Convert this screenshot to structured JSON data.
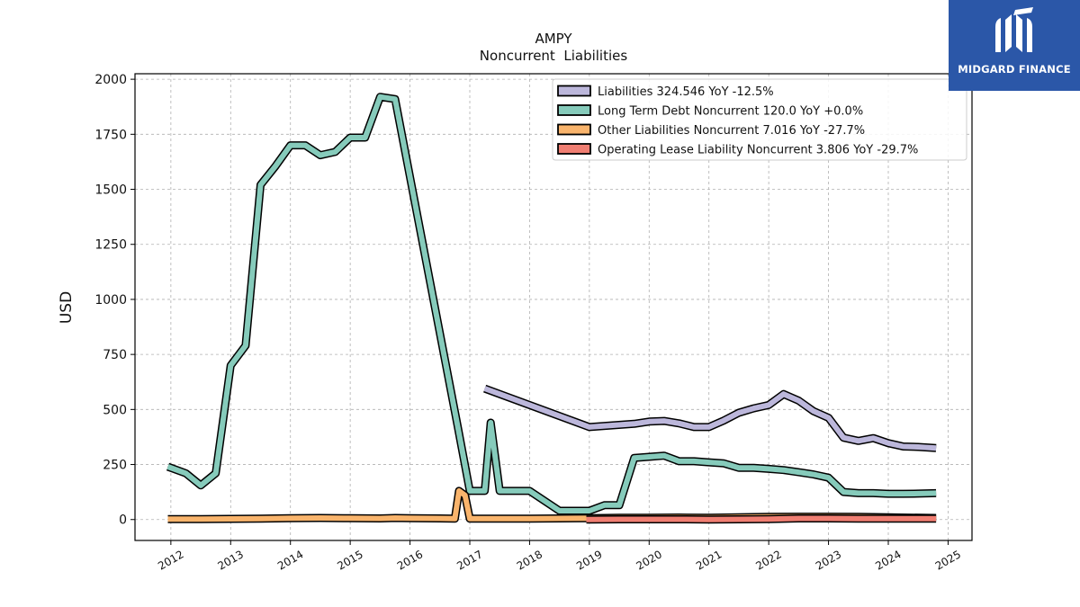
{
  "brand": {
    "name": "MIDGARD FINANCE",
    "logo_icon": "midgard-logo-icon",
    "background": "#2b57a8"
  },
  "chart_data": {
    "type": "line",
    "title": "AMPY",
    "subtitle": "Noncurrent  Liabilities",
    "ylabel": "USD",
    "xlabel": "",
    "xlim": [
      2011.4,
      2025.4
    ],
    "ylim": [
      -95,
      2025
    ],
    "x_ticks": [
      "2012",
      "2013",
      "2014",
      "2015",
      "2016",
      "2017",
      "2018",
      "2019",
      "2020",
      "2021",
      "2022",
      "2023",
      "2024",
      "2025"
    ],
    "y_ticks": [
      0,
      250,
      500,
      750,
      1000,
      1250,
      1500,
      1750,
      2000
    ],
    "y_tick_labels": [
      "0",
      "250",
      "500",
      "750",
      "1000",
      "1250",
      "1500",
      "1750",
      "2000"
    ],
    "grid": true,
    "legend_position": "top-right",
    "series": [
      {
        "name": "Liabilities  324.546 YoY -12.5%",
        "color": "#bcb7db",
        "points": [
          [
            2017.25,
            595
          ],
          [
            2019.0,
            420
          ],
          [
            2019.75,
            435
          ],
          [
            2020.0,
            445
          ],
          [
            2020.25,
            448
          ],
          [
            2020.5,
            437
          ],
          [
            2020.75,
            420
          ],
          [
            2021.0,
            420
          ],
          [
            2021.25,
            450
          ],
          [
            2021.5,
            485
          ],
          [
            2021.75,
            505
          ],
          [
            2022.0,
            520
          ],
          [
            2022.25,
            570
          ],
          [
            2022.5,
            540
          ],
          [
            2022.75,
            492
          ],
          [
            2023.0,
            462
          ],
          [
            2023.25,
            372
          ],
          [
            2023.5,
            357
          ],
          [
            2023.75,
            370
          ],
          [
            2024.0,
            347
          ],
          [
            2024.25,
            332
          ],
          [
            2024.5,
            330
          ],
          [
            2024.8,
            325
          ]
        ]
      },
      {
        "name": "Long Term Debt Noncurrent  120.0 YoY +0.0%",
        "color": "#86cbbb",
        "points": [
          [
            2011.95,
            240
          ],
          [
            2012.25,
            210
          ],
          [
            2012.5,
            155
          ],
          [
            2012.75,
            210
          ],
          [
            2013.0,
            700
          ],
          [
            2013.25,
            790
          ],
          [
            2013.5,
            1520
          ],
          [
            2013.75,
            1605
          ],
          [
            2014.0,
            1700
          ],
          [
            2014.25,
            1700
          ],
          [
            2014.5,
            1655
          ],
          [
            2014.75,
            1670
          ],
          [
            2015.0,
            1735
          ],
          [
            2015.25,
            1735
          ],
          [
            2015.5,
            1920
          ],
          [
            2015.75,
            1910
          ],
          [
            2016.8,
            420
          ],
          [
            2017.0,
            130
          ],
          [
            2017.25,
            130
          ],
          [
            2017.35,
            440
          ],
          [
            2017.5,
            130
          ],
          [
            2018.0,
            130
          ],
          [
            2018.5,
            40
          ],
          [
            2018.75,
            40
          ],
          [
            2019.0,
            40
          ],
          [
            2019.25,
            65
          ],
          [
            2019.5,
            65
          ],
          [
            2019.75,
            280
          ],
          [
            2020.0,
            285
          ],
          [
            2020.25,
            290
          ],
          [
            2020.5,
            265
          ],
          [
            2020.75,
            265
          ],
          [
            2021.0,
            260
          ],
          [
            2021.25,
            255
          ],
          [
            2021.5,
            235
          ],
          [
            2021.75,
            235
          ],
          [
            2022.0,
            230
          ],
          [
            2022.25,
            225
          ],
          [
            2022.5,
            215
          ],
          [
            2022.75,
            205
          ],
          [
            2023.0,
            190
          ],
          [
            2023.25,
            125
          ],
          [
            2023.5,
            120
          ],
          [
            2023.75,
            120
          ],
          [
            2024.0,
            117
          ],
          [
            2024.25,
            117
          ],
          [
            2024.5,
            118
          ],
          [
            2024.8,
            120
          ]
        ]
      },
      {
        "name": "Other Liabilities Noncurrent  7.016 YoY -27.7%",
        "color": "#f9b46c",
        "points": [
          [
            2011.95,
            2
          ],
          [
            2012.5,
            2
          ],
          [
            2013.0,
            3
          ],
          [
            2013.5,
            4
          ],
          [
            2014.0,
            6
          ],
          [
            2014.5,
            7
          ],
          [
            2015.0,
            6
          ],
          [
            2015.5,
            5
          ],
          [
            2015.75,
            7
          ],
          [
            2016.0,
            6
          ],
          [
            2016.5,
            5
          ],
          [
            2016.75,
            4
          ],
          [
            2016.82,
            130
          ],
          [
            2016.92,
            110
          ],
          [
            2017.0,
            4
          ],
          [
            2017.5,
            4
          ],
          [
            2018.0,
            4
          ],
          [
            2018.5,
            5
          ],
          [
            2019.0,
            6
          ],
          [
            2019.5,
            8
          ],
          [
            2020.0,
            8
          ],
          [
            2020.5,
            9
          ],
          [
            2021.0,
            8
          ],
          [
            2021.5,
            10
          ],
          [
            2022.0,
            12
          ],
          [
            2022.5,
            13
          ],
          [
            2023.0,
            13
          ],
          [
            2023.5,
            12
          ],
          [
            2024.0,
            10
          ],
          [
            2024.8,
            7
          ]
        ]
      },
      {
        "name": "Operating Lease Liability Noncurrent  3.806 YoY -29.7%",
        "color": "#f07e72",
        "points": [
          [
            2018.95,
            0
          ],
          [
            2019.5,
            1
          ],
          [
            2020.0,
            1
          ],
          [
            2020.5,
            1
          ],
          [
            2021.0,
            0
          ],
          [
            2021.5,
            1
          ],
          [
            2022.0,
            2
          ],
          [
            2022.5,
            5
          ],
          [
            2023.0,
            5
          ],
          [
            2023.5,
            4
          ],
          [
            2024.0,
            4
          ],
          [
            2024.8,
            4
          ]
        ]
      }
    ]
  }
}
